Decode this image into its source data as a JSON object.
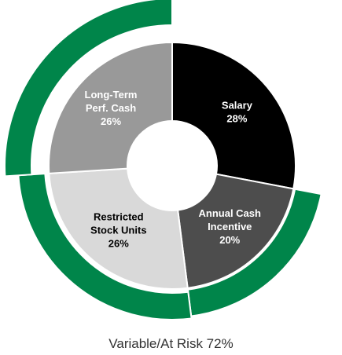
{
  "chart_data": {
    "type": "pie",
    "variant": "donut",
    "categories": [
      "Salary",
      "Annual Cash Incentive",
      "Restricted Stock Units",
      "Long-Term Perf. Cash"
    ],
    "values": [
      28,
      20,
      26,
      26
    ],
    "labels": [
      {
        "lines": [
          "Salary",
          "28%"
        ]
      },
      {
        "lines": [
          "Annual Cash",
          "Incentive",
          "20%"
        ]
      },
      {
        "lines": [
          "Restricted",
          "Stock Units",
          "26%"
        ]
      },
      {
        "lines": [
          "Long-Term",
          "Perf. Cash",
          "26%"
        ]
      }
    ],
    "colors": [
      "#000000",
      "#4d4d4d",
      "#d9d9d9",
      "#999999"
    ],
    "label_colors": [
      "#ffffff",
      "#ffffff",
      "#000000",
      "#ffffff"
    ],
    "outer_ring": {
      "categories": [
        "Annual Cash Incentive",
        "Restricted Stock Units",
        "Long-Term Perf. Cash"
      ],
      "value": 72,
      "color": "#00854a"
    },
    "caption": "Variable/At Risk 72%"
  }
}
